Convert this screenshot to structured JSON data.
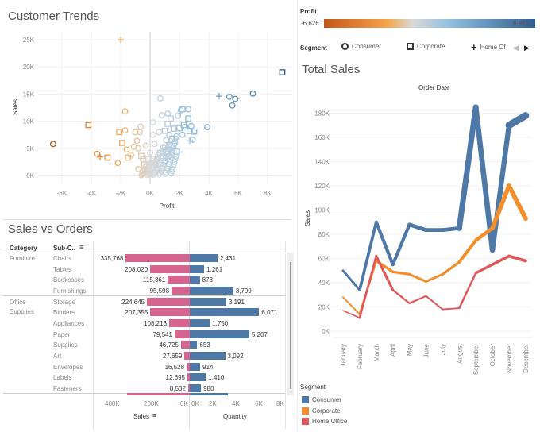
{
  "customer_trends": {
    "title": "Customer Trends",
    "chart_data": {
      "type": "scatter",
      "xlabel": "Profit",
      "ylabel": "Sales",
      "xlim": [
        -7000,
        10000
      ],
      "ylim": [
        -1000,
        26000
      ],
      "x_ticks": [
        "-6K",
        "-4K",
        "-2K",
        "0K",
        "2K",
        "4K",
        "6K",
        "8K"
      ],
      "x_tick_values": [
        -6000,
        -4000,
        -2000,
        0,
        2000,
        4000,
        6000,
        8000
      ],
      "y_ticks": [
        "0K",
        "5K",
        "10K",
        "15K",
        "20K",
        "25K"
      ],
      "y_tick_values": [
        0,
        5000,
        10000,
        15000,
        20000,
        25000
      ],
      "grid": true,
      "color_by": "Profit",
      "shape_by": "Segment",
      "points": [
        [
          -6600,
          5800,
          "Consumer"
        ],
        [
          -4200,
          9300,
          "Corporate"
        ],
        [
          -3600,
          4000,
          "Consumer"
        ],
        [
          -3400,
          3400,
          "Home Office"
        ],
        [
          -2900,
          3300,
          "Corporate"
        ],
        [
          -2200,
          2300,
          "Consumer"
        ],
        [
          -2000,
          25000,
          "Home Office"
        ],
        [
          -2100,
          8000,
          "Corporate"
        ],
        [
          -1900,
          6000,
          "Corporate"
        ],
        [
          -1700,
          11800,
          "Consumer"
        ],
        [
          -1700,
          8300,
          "Consumer"
        ],
        [
          -1600,
          4800,
          "Consumer"
        ],
        [
          -1500,
          3300,
          "Corporate"
        ],
        [
          -1300,
          3800,
          "Consumer"
        ],
        [
          -1000,
          8000,
          "Consumer"
        ],
        [
          -700,
          8000,
          "Consumer"
        ],
        [
          -650,
          9000,
          "Consumer"
        ],
        [
          -900,
          6400,
          "Consumer"
        ],
        [
          -800,
          5000,
          "Consumer"
        ],
        [
          -1100,
          5300,
          "Consumer"
        ],
        [
          -800,
          1200,
          "Consumer"
        ],
        [
          -500,
          3000,
          "Consumer"
        ],
        [
          -300,
          5500,
          "Consumer"
        ],
        [
          -400,
          2000,
          "Corporate"
        ],
        [
          -200,
          1000,
          "Consumer"
        ],
        [
          -600,
          3600,
          "Corporate"
        ],
        [
          200,
          7500,
          "Consumer"
        ],
        [
          200,
          9800,
          "Consumer"
        ],
        [
          700,
          14200,
          "Consumer"
        ],
        [
          800,
          11100,
          "Consumer"
        ],
        [
          1200,
          11400,
          "Consumer"
        ],
        [
          1400,
          10500,
          "Corporate"
        ],
        [
          1900,
          11000,
          "Consumer"
        ],
        [
          2100,
          12000,
          "Consumer"
        ],
        [
          2200,
          12200,
          "Corporate"
        ],
        [
          2600,
          12200,
          "Consumer"
        ],
        [
          2600,
          10500,
          "Corporate"
        ],
        [
          2000,
          8700,
          "Corporate"
        ],
        [
          2300,
          9300,
          "Corporate"
        ],
        [
          2700,
          8200,
          "Corporate"
        ],
        [
          3000,
          8100,
          "Corporate"
        ],
        [
          2800,
          9100,
          "Consumer"
        ],
        [
          2900,
          6600,
          "Consumer"
        ],
        [
          2700,
          6400,
          "Home Office"
        ],
        [
          3900,
          8900,
          "Consumer"
        ],
        [
          1800,
          4400,
          "Corporate"
        ],
        [
          2000,
          4300,
          "Home Office"
        ],
        [
          4700,
          14600,
          "Home Office"
        ],
        [
          5400,
          14500,
          "Consumer"
        ],
        [
          5600,
          12900,
          "Consumer"
        ],
        [
          5800,
          14100,
          "Consumer"
        ],
        [
          7000,
          15100,
          "Consumer"
        ],
        [
          9000,
          19000,
          "Corporate"
        ],
        [
          600,
          8000,
          "Consumer"
        ],
        [
          1000,
          8200,
          "Corporate"
        ],
        [
          1300,
          7500,
          "Consumer"
        ],
        [
          1600,
          8600,
          "Corporate"
        ],
        [
          1100,
          6500,
          "Consumer"
        ],
        [
          1500,
          6800,
          "Corporate"
        ],
        [
          1800,
          7200,
          "Consumer"
        ],
        [
          900,
          5200,
          "Consumer"
        ],
        [
          1300,
          5600,
          "Corporate"
        ],
        [
          1700,
          6000,
          "Consumer"
        ],
        [
          700,
          4200,
          "Corporate"
        ],
        [
          1100,
          4400,
          "Consumer"
        ],
        [
          1500,
          4700,
          "Home Office"
        ],
        [
          500,
          3000,
          "Consumer"
        ],
        [
          900,
          3300,
          "Corporate"
        ],
        [
          1300,
          3600,
          "Consumer"
        ],
        [
          400,
          2000,
          "Consumer"
        ],
        [
          700,
          2300,
          "Corporate"
        ],
        [
          1000,
          2600,
          "Consumer"
        ],
        [
          200,
          1000,
          "Consumer"
        ],
        [
          500,
          1300,
          "Consumer"
        ],
        [
          100,
          400,
          "Consumer"
        ],
        [
          0,
          200,
          "Corporate"
        ],
        [
          -100,
          600,
          "Consumer"
        ],
        [
          300,
          5800,
          "Consumer"
        ],
        [
          0,
          4200,
          "Consumer"
        ],
        [
          -100,
          3000,
          "Corporate"
        ],
        [
          100,
          2200,
          "Consumer"
        ],
        [
          2200,
          7500,
          "Consumer"
        ],
        [
          2400,
          9000,
          "Consumer"
        ],
        [
          1200,
          9500,
          "Corporate"
        ]
      ]
    }
  },
  "profit_legend": {
    "title": "Profit",
    "min_label": "-6,626",
    "max_label": "8,981",
    "colors": [
      "#c5541c",
      "#f5a54a",
      "#d9d9d9",
      "#90bedf",
      "#2d5f91"
    ]
  },
  "segment_legend": {
    "title": "Segment",
    "items": [
      "Consumer",
      "Corporate",
      "Home Of"
    ],
    "shapes": [
      "circle",
      "square",
      "plus"
    ]
  },
  "sales_vs_orders": {
    "title": "Sales vs Orders",
    "headers": {
      "category": "Category",
      "subcategory": "Sub-C.."
    },
    "categories": [
      {
        "name": "Furniture",
        "rows": 4
      },
      {
        "name": "Office Supplies",
        "rows": 9
      }
    ],
    "chart_data": {
      "type": "bar",
      "categories": [
        "Chairs",
        "Tables",
        "Bookcases",
        "Furnishings",
        "Storage",
        "Binders",
        "Appliances",
        "Paper",
        "Supplies",
        "Art",
        "Envelopes",
        "Labels",
        "Fasteners"
      ],
      "series": [
        {
          "name": "Sales",
          "values": [
            335768,
            208020,
            115361,
            95598,
            224645,
            207355,
            108213,
            79541,
            46725,
            27659,
            16528,
            12695,
            8532
          ],
          "labels": [
            "335,768",
            "208,020",
            "115,361",
            "95,598",
            "224,645",
            "207,355",
            "108,213",
            "79,541",
            "46,725",
            "27,659",
            "16,528",
            "12,695",
            "8,532"
          ],
          "color": "#d5658e"
        },
        {
          "name": "Quantity",
          "values": [
            2431,
            1261,
            878,
            3799,
            3191,
            6071,
            1750,
            5207,
            653,
            3092,
            914,
            1410,
            980
          ],
          "labels": [
            "2,431",
            "1,261",
            "878",
            "3,799",
            "3,191",
            "6,071",
            "1,750",
            "5,207",
            "653",
            "3,092",
            "914",
            "1,410",
            "980"
          ],
          "color": "#4e79a7"
        }
      ],
      "sales_ticks": [
        "400K",
        "200K",
        "0K"
      ],
      "quantity_ticks": [
        "0K",
        "2K",
        "4K",
        "6K",
        "8K"
      ],
      "xlabel_sales": "Sales",
      "xlabel_quantity": "Quantity"
    }
  },
  "total_sales": {
    "title": "Total Sales",
    "chart_data": {
      "type": "line",
      "title": "Order Date",
      "ylabel": "Sales",
      "categories": [
        "January",
        "February",
        "March",
        "April",
        "May",
        "June",
        "July",
        "August",
        "September",
        "October",
        "November",
        "December"
      ],
      "ylim": [
        0,
        190000
      ],
      "y_ticks": [
        "0K",
        "20K",
        "40K",
        "60K",
        "80K",
        "100K",
        "120K",
        "140K",
        "160K",
        "180K"
      ],
      "series": [
        {
          "name": "Consumer",
          "color": "#4e79a7",
          "values": [
            50000,
            34000,
            90000,
            55000,
            88000,
            83500,
            83500,
            85000,
            185000,
            67000,
            170000,
            178000
          ]
        },
        {
          "name": "Corporate",
          "color": "#f28e2b",
          "values": [
            28000,
            14000,
            58000,
            49000,
            47000,
            41000,
            47000,
            57000,
            75000,
            85000,
            120000,
            93000
          ]
        },
        {
          "name": "Home Office",
          "color": "#e15759",
          "values": [
            17000,
            11000,
            62000,
            34000,
            23000,
            29000,
            18000,
            19000,
            48000,
            55000,
            62000,
            58000
          ]
        }
      ]
    },
    "legend_title": "Segment"
  }
}
